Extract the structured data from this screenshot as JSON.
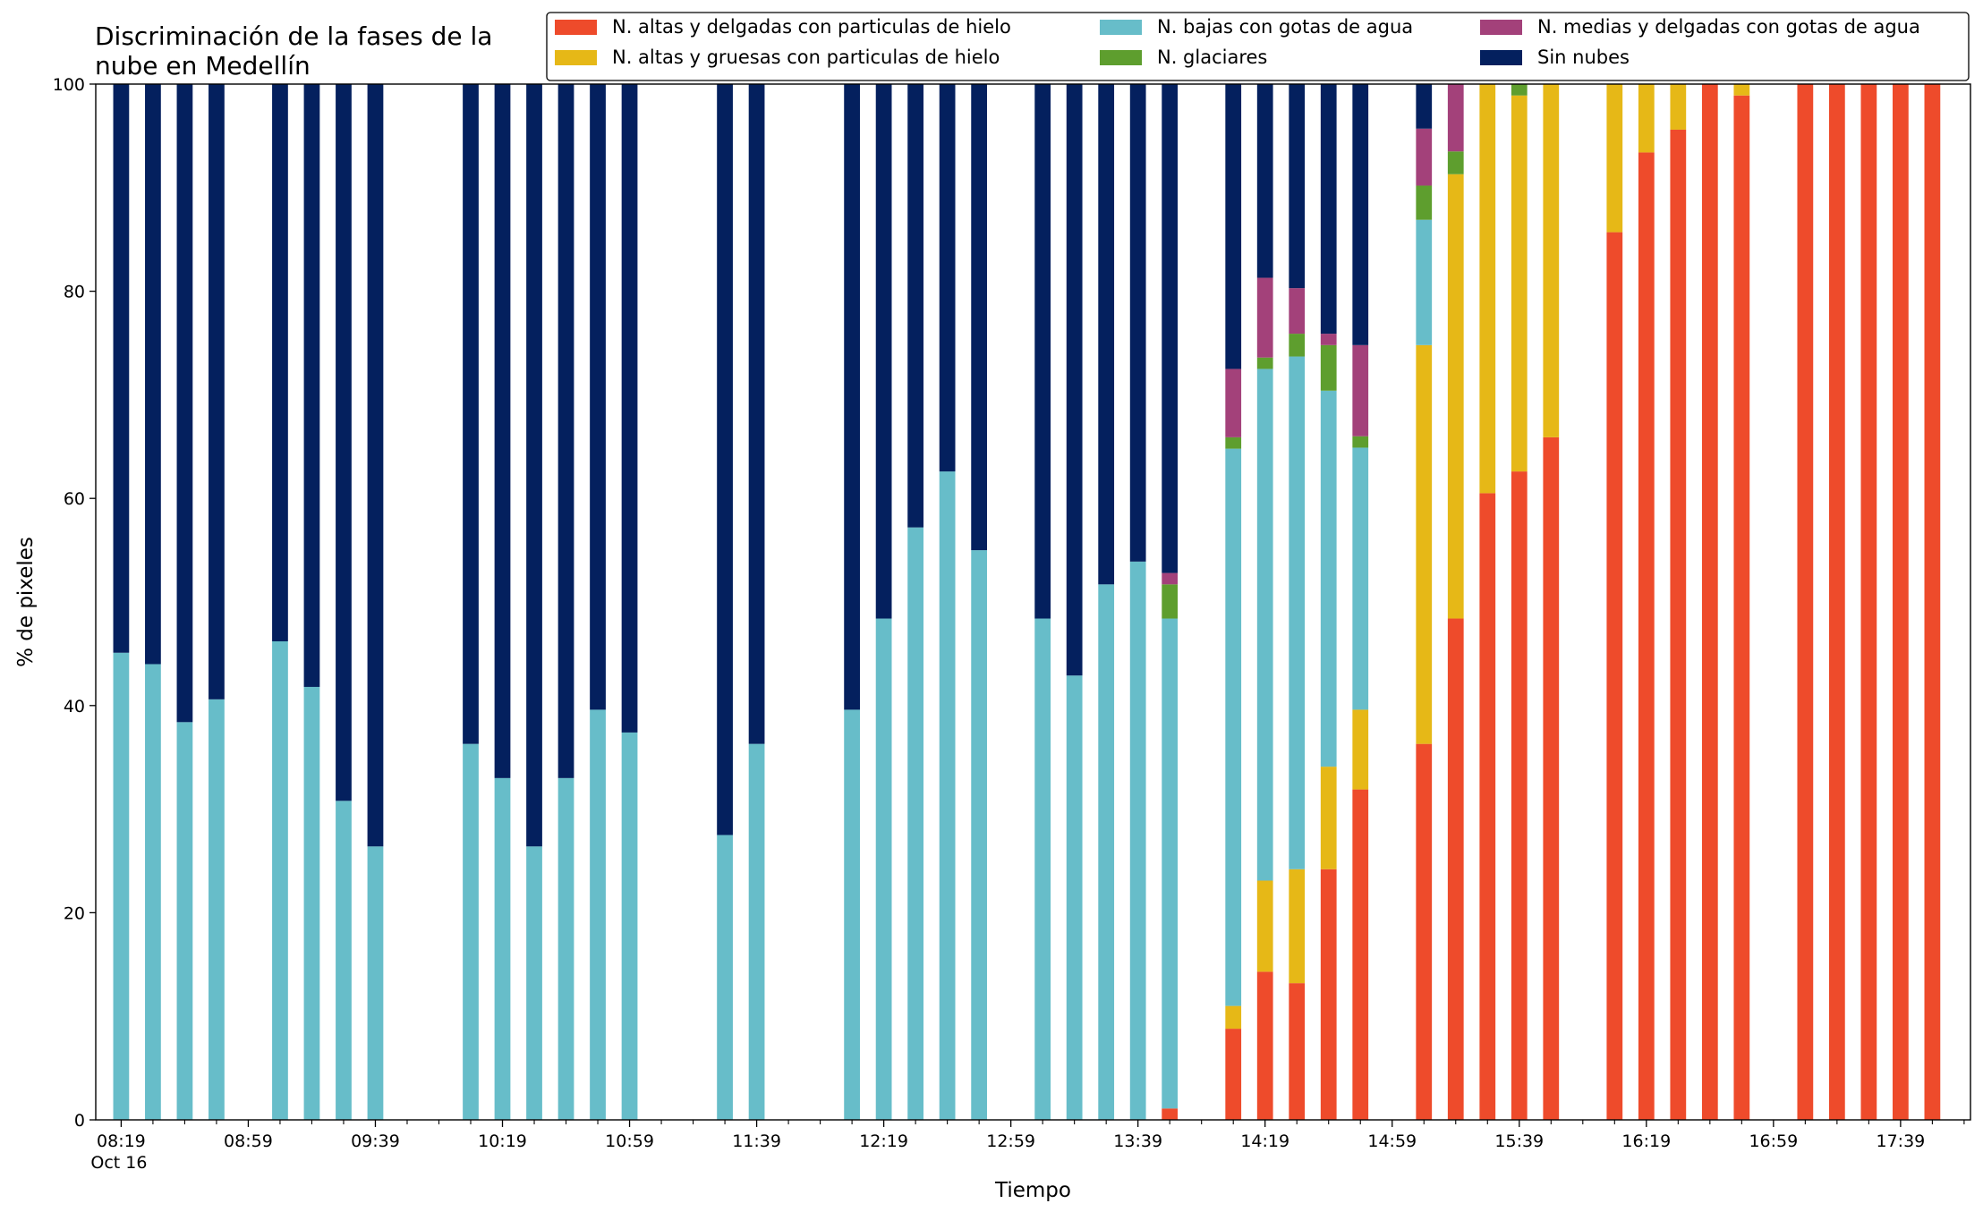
{
  "chart_data": {
    "type": "bar",
    "stacked": true,
    "title_lines": [
      "Discriminación de la fases de la",
      "nube en Medellín"
    ],
    "xlabel": "Tiempo",
    "ylabel": "% de pixeles",
    "ylim": [
      0,
      100
    ],
    "yticks": [
      0,
      20,
      40,
      60,
      80,
      100
    ],
    "x_range_min": [
      -8,
      582
    ],
    "x_unit": "minutes after 08:19 on Oct 16",
    "xticks_major": [
      {
        "x_min": 0,
        "lines": [
          "08:19",
          "Oct 16"
        ]
      },
      {
        "x_min": 40,
        "lines": [
          "08:59"
        ]
      },
      {
        "x_min": 80,
        "lines": [
          "09:39"
        ]
      },
      {
        "x_min": 120,
        "lines": [
          "10:19"
        ]
      },
      {
        "x_min": 160,
        "lines": [
          "10:59"
        ]
      },
      {
        "x_min": 200,
        "lines": [
          "11:39"
        ]
      },
      {
        "x_min": 240,
        "lines": [
          "12:19"
        ]
      },
      {
        "x_min": 280,
        "lines": [
          "12:59"
        ]
      },
      {
        "x_min": 320,
        "lines": [
          "13:39"
        ]
      },
      {
        "x_min": 360,
        "lines": [
          "14:19"
        ]
      },
      {
        "x_min": 400,
        "lines": [
          "14:59"
        ]
      },
      {
        "x_min": 440,
        "lines": [
          "15:39"
        ]
      },
      {
        "x_min": 480,
        "lines": [
          "16:19"
        ]
      },
      {
        "x_min": 520,
        "lines": [
          "16:59"
        ]
      },
      {
        "x_min": 560,
        "lines": [
          "17:39"
        ]
      }
    ],
    "minor_tick_step_min": 10,
    "bar_width_min": 5,
    "legend_position": "top-right",
    "series": [
      {
        "key": "altas_delgadas",
        "name": "N. altas y delgadas con particulas de hielo",
        "color": "#EE4B2B"
      },
      {
        "key": "altas_gruesas",
        "name": "N. altas y gruesas con particulas de hielo",
        "color": "#E6B817"
      },
      {
        "key": "bajas_agua",
        "name": "N. bajas con gotas de agua",
        "color": "#67BDC9"
      },
      {
        "key": "glaciares",
        "name": "N. glaciares",
        "color": "#5E9E2E"
      },
      {
        "key": "medias_agua",
        "name": "N. medias y delgadas con gotas de agua",
        "color": "#A3417A"
      },
      {
        "key": "sin_nubes",
        "name": "Sin nubes",
        "color": "#04205E"
      }
    ],
    "stack_order": [
      "altas_delgadas",
      "altas_gruesas",
      "bajas_agua",
      "glaciares",
      "medias_agua",
      "sin_nubes"
    ],
    "legend_order": [
      "altas_delgadas",
      "altas_gruesas",
      "bajas_agua",
      "glaciares",
      "medias_agua",
      "sin_nubes"
    ],
    "bars": [
      {
        "time": "08:19",
        "values": [
          0,
          0,
          45.1,
          0,
          0,
          54.9
        ]
      },
      {
        "time": "08:29",
        "values": [
          0,
          0,
          44,
          0,
          0,
          56
        ]
      },
      {
        "time": "08:39",
        "values": [
          0,
          0,
          38.4,
          0,
          0,
          61.6
        ]
      },
      {
        "time": "08:49",
        "values": [
          0,
          0,
          40.6,
          0,
          0,
          59.4
        ]
      },
      {
        "time": "09:09",
        "values": [
          0,
          0,
          46.2,
          0,
          0,
          53.8
        ]
      },
      {
        "time": "09:19",
        "values": [
          0,
          0,
          41.8,
          0,
          0,
          58.2
        ]
      },
      {
        "time": "09:29",
        "values": [
          0,
          0,
          30.8,
          0,
          0,
          69.2
        ]
      },
      {
        "time": "09:39",
        "values": [
          0,
          0,
          26.4,
          0,
          0,
          73.6
        ]
      },
      {
        "time": "10:09",
        "values": [
          0,
          0,
          36.3,
          0,
          0,
          63.7
        ]
      },
      {
        "time": "10:19",
        "values": [
          0,
          0,
          33,
          0,
          0,
          67
        ]
      },
      {
        "time": "10:29",
        "values": [
          0,
          0,
          26.4,
          0,
          0,
          73.6
        ]
      },
      {
        "time": "10:39",
        "values": [
          0,
          0,
          33,
          0,
          0,
          67
        ]
      },
      {
        "time": "10:49",
        "values": [
          0,
          0,
          39.6,
          0,
          0,
          60.4
        ]
      },
      {
        "time": "10:59",
        "values": [
          0,
          0,
          37.4,
          0,
          0,
          62.6
        ]
      },
      {
        "time": "11:29",
        "values": [
          0,
          0,
          27.5,
          0,
          0,
          72.5
        ]
      },
      {
        "time": "11:39",
        "values": [
          0,
          0,
          36.3,
          0,
          0,
          63.7
        ]
      },
      {
        "time": "12:09",
        "values": [
          0,
          0,
          39.6,
          0,
          0,
          60.4
        ]
      },
      {
        "time": "12:19",
        "values": [
          0,
          0,
          48.4,
          0,
          0,
          51.6
        ]
      },
      {
        "time": "12:29",
        "values": [
          0,
          0,
          57.2,
          0,
          0,
          42.8
        ]
      },
      {
        "time": "12:39",
        "values": [
          0,
          0,
          62.6,
          0,
          0,
          37.4
        ]
      },
      {
        "time": "12:49",
        "values": [
          0,
          0,
          55,
          0,
          0,
          45
        ]
      },
      {
        "time": "13:09",
        "values": [
          0,
          0,
          48.4,
          0,
          0,
          51.6
        ]
      },
      {
        "time": "13:19",
        "values": [
          0,
          0,
          42.9,
          0,
          0,
          57.1
        ]
      },
      {
        "time": "13:29",
        "values": [
          0,
          0,
          51.7,
          0,
          0,
          48.3
        ]
      },
      {
        "time": "13:39",
        "values": [
          0,
          0,
          53.9,
          0,
          0,
          46.1
        ]
      },
      {
        "time": "13:49",
        "values": [
          1.1,
          0,
          47.3,
          3.3,
          1.1,
          47.2
        ]
      },
      {
        "time": "14:09",
        "values": [
          8.8,
          2.2,
          53.8,
          1.1,
          6.6,
          27.5
        ]
      },
      {
        "time": "14:19",
        "values": [
          14.3,
          8.8,
          49.4,
          1.1,
          7.7,
          18.7
        ]
      },
      {
        "time": "14:29",
        "values": [
          13.2,
          11,
          49.5,
          2.2,
          4.4,
          19.7
        ]
      },
      {
        "time": "14:39",
        "values": [
          24.2,
          9.9,
          36.3,
          4.4,
          1.1,
          24.1
        ]
      },
      {
        "time": "14:49",
        "values": [
          31.9,
          7.7,
          25.3,
          1.1,
          8.8,
          25.2
        ]
      },
      {
        "time": "15:09",
        "values": [
          36.3,
          38.5,
          12.1,
          3.3,
          5.5,
          4.3
        ]
      },
      {
        "time": "15:19",
        "values": [
          48.4,
          42.9,
          0,
          2.2,
          6.5,
          0
        ]
      },
      {
        "time": "15:29",
        "values": [
          60.5,
          39.5,
          0,
          0,
          0,
          0
        ]
      },
      {
        "time": "15:39",
        "values": [
          62.6,
          36.3,
          0,
          1.1,
          0,
          0
        ]
      },
      {
        "time": "15:49",
        "values": [
          65.9,
          34.1,
          0,
          0,
          0,
          0
        ]
      },
      {
        "time": "16:09",
        "values": [
          85.7,
          14.3,
          0,
          0,
          0,
          0
        ]
      },
      {
        "time": "16:19",
        "values": [
          93.4,
          6.6,
          0,
          0,
          0,
          0
        ]
      },
      {
        "time": "16:29",
        "values": [
          95.6,
          4.4,
          0,
          0,
          0,
          0
        ]
      },
      {
        "time": "16:39",
        "values": [
          100,
          0,
          0,
          0,
          0,
          0
        ]
      },
      {
        "time": "16:49",
        "values": [
          98.9,
          1.1,
          0,
          0,
          0,
          0
        ]
      },
      {
        "time": "17:09",
        "values": [
          100,
          0,
          0,
          0,
          0,
          0
        ]
      },
      {
        "time": "17:19",
        "values": [
          100,
          0,
          0,
          0,
          0,
          0
        ]
      },
      {
        "time": "17:29",
        "values": [
          100,
          0,
          0,
          0,
          0,
          0
        ]
      },
      {
        "time": "17:39",
        "values": [
          100,
          0,
          0,
          0,
          0,
          0
        ]
      },
      {
        "time": "17:49",
        "values": [
          100,
          0,
          0,
          0,
          0,
          0
        ]
      }
    ]
  }
}
